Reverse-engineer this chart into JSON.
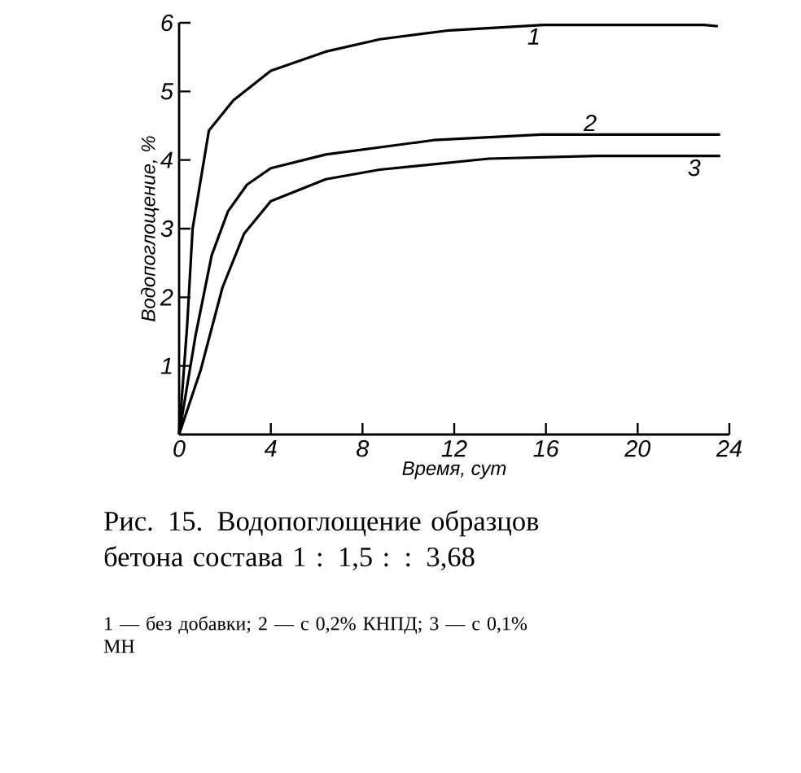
{
  "chart_data": {
    "type": "line",
    "title": "Рис. 15. Водопоглощение образцов бетона состава 1 : 1,5 : : 3,68",
    "xlabel": "Время, сут",
    "ylabel": "Водопоглощение, %",
    "xlim": [
      0,
      24
    ],
    "ylim": [
      0,
      6
    ],
    "xticks": [
      0,
      4,
      8,
      12,
      16,
      20,
      24
    ],
    "yticks": [
      1,
      2,
      3,
      4,
      5,
      6
    ],
    "grid": false,
    "legend": false,
    "marker": "none",
    "line_style": "solid",
    "annotations": [
      "1 — без добавки; 2 — с 0,2% КНПД; 3 — с 0,1% МН"
    ],
    "series": [
      {
        "name": "1",
        "color": "#000000",
        "x": [
          0,
          0.35,
          0.59,
          1.3,
          2.37,
          4.0,
          6.4,
          8.76,
          11.8,
          15.9,
          22.9,
          23.5
        ],
        "values": [
          0,
          1.58,
          3.0,
          4.43,
          4.87,
          5.3,
          5.58,
          5.76,
          5.89,
          5.97,
          5.97,
          5.95
        ]
      },
      {
        "name": "2",
        "color": "#000000",
        "x": [
          0,
          0.71,
          1.42,
          2.13,
          2.96,
          4.0,
          6.4,
          11.1,
          15.8,
          23.6
        ],
        "values": [
          0,
          1.43,
          2.61,
          3.25,
          3.64,
          3.88,
          4.08,
          4.29,
          4.37,
          4.37
        ]
      },
      {
        "name": "3",
        "color": "#000000",
        "x": [
          0,
          0.95,
          1.89,
          2.84,
          4.0,
          6.4,
          8.75,
          13.5,
          18.2,
          23.6
        ],
        "values": [
          0,
          0.95,
          2.14,
          2.93,
          3.4,
          3.72,
          3.86,
          4.02,
          4.06,
          4.06
        ]
      }
    ]
  }
}
